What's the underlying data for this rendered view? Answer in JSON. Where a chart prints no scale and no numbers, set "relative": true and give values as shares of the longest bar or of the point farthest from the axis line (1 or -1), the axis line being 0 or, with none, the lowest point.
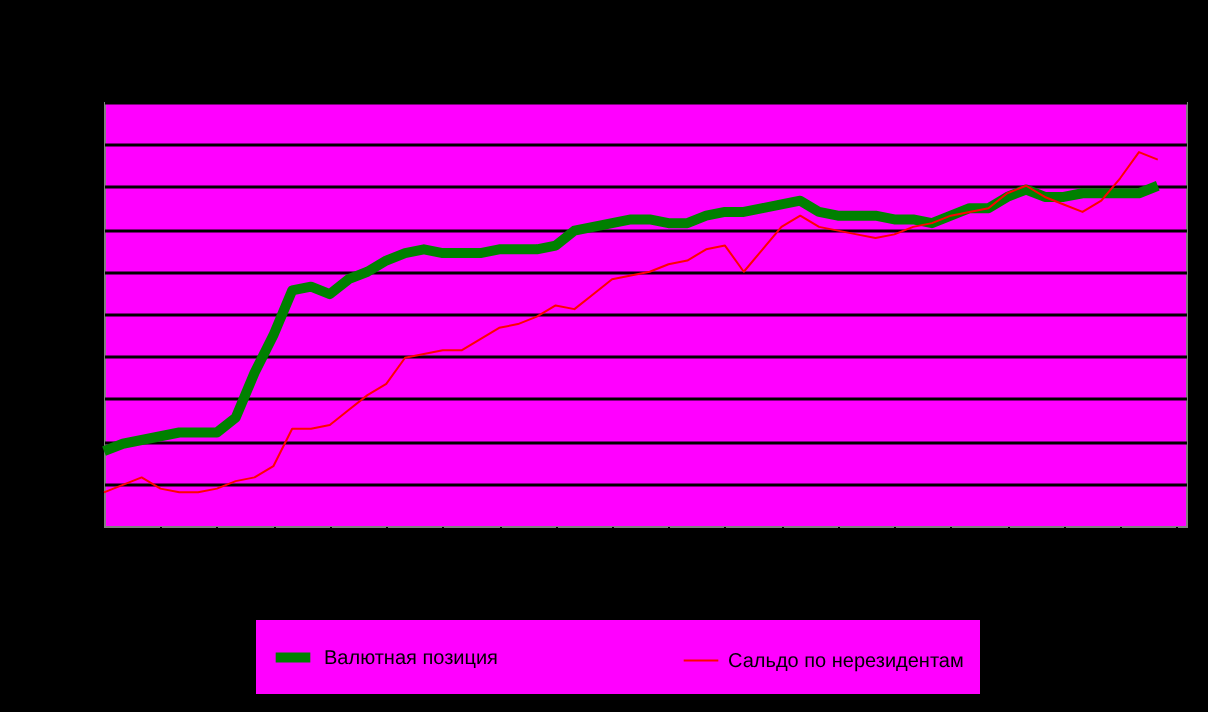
{
  "chart_data": {
    "type": "line",
    "relative": true,
    "grid": "y",
    "legend": "bottom",
    "categories": [
      null,
      null,
      null,
      null,
      null,
      null,
      null,
      null,
      null,
      null,
      null,
      null,
      null,
      null,
      null,
      null,
      null,
      null,
      null,
      null,
      null,
      null,
      null,
      null,
      null,
      null,
      null,
      null,
      null,
      null,
      null,
      null,
      null,
      null,
      null,
      null,
      null,
      null,
      null,
      null,
      null,
      null,
      null,
      null,
      null,
      null,
      null,
      null,
      null,
      null,
      null,
      null,
      null,
      null,
      null,
      null,
      null
    ],
    "series": [
      {
        "name": "Валютная позиция",
        "color": "#008000",
        "values": [
          0.2,
          0.22,
          0.23,
          0.24,
          0.25,
          0.25,
          0.25,
          0.29,
          0.41,
          0.51,
          0.63,
          0.64,
          0.62,
          0.66,
          0.68,
          0.71,
          0.73,
          0.74,
          0.73,
          0.73,
          0.73,
          0.74,
          0.74,
          0.74,
          0.75,
          0.79,
          0.8,
          0.81,
          0.82,
          0.82,
          0.81,
          0.81,
          0.83,
          0.84,
          0.84,
          0.85,
          0.86,
          0.87,
          0.84,
          0.83,
          0.83,
          0.83,
          0.82,
          0.82,
          0.81,
          0.83,
          0.85,
          0.85,
          0.88,
          0.9,
          0.88,
          0.88,
          0.89,
          0.89,
          0.89,
          0.89,
          0.91
        ]
      },
      {
        "name": "Сальдо по нерезидентам",
        "color": "#ff0000",
        "values": [
          0.09,
          0.11,
          0.13,
          0.1,
          0.09,
          0.09,
          0.1,
          0.12,
          0.13,
          0.16,
          0.26,
          0.26,
          0.27,
          0.31,
          0.35,
          0.38,
          0.45,
          0.46,
          0.47,
          0.47,
          0.5,
          0.53,
          0.54,
          0.56,
          0.59,
          0.58,
          0.62,
          0.66,
          0.67,
          0.68,
          0.7,
          0.71,
          0.74,
          0.75,
          0.68,
          0.74,
          0.8,
          0.83,
          0.8,
          0.79,
          0.78,
          0.77,
          0.78,
          0.8,
          0.81,
          0.83,
          0.84,
          0.85,
          0.89,
          0.91,
          0.88,
          0.86,
          0.84,
          0.87,
          0.93,
          1,
          0.98
        ]
      }
    ]
  }
}
